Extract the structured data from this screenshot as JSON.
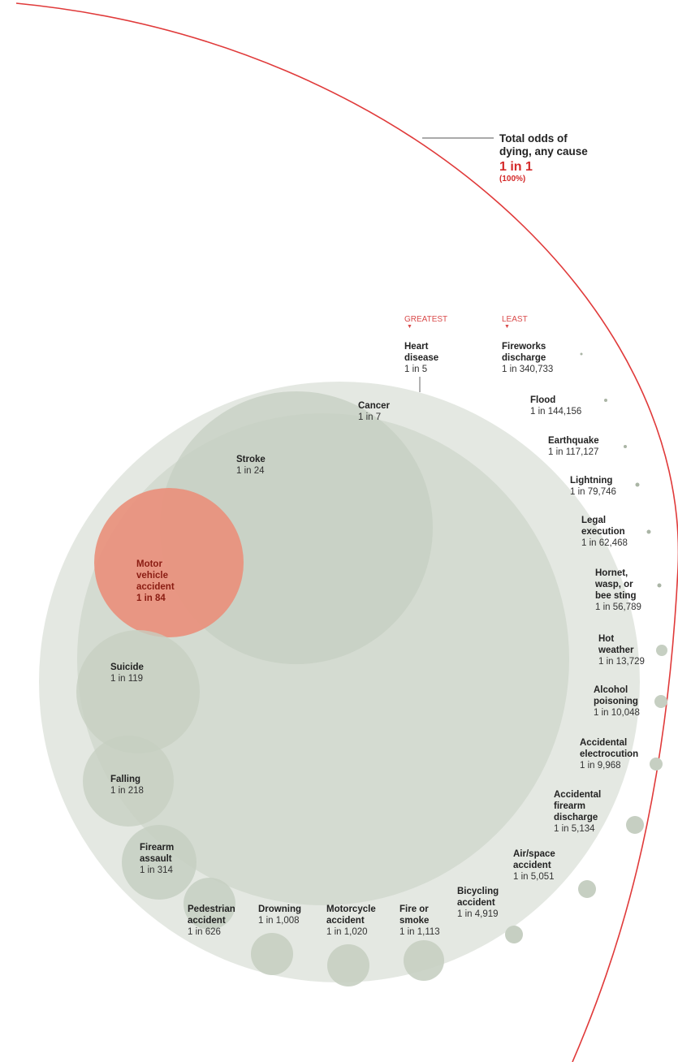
{
  "total": {
    "title": "Total odds of\ndying, any cause",
    "odds": "1 in 1",
    "percent": "(100%)"
  },
  "key": {
    "greatest": "GREATEST",
    "least": "LEAST"
  },
  "colors": {
    "outer_arc": "#e03a3a",
    "big_circle": "#dfe4dd",
    "cause_circle": "#c6cfc2",
    "highlight": "#e9907c",
    "highlight_text": "#8a1c12"
  },
  "chart_data": {
    "type": "bubble",
    "value_format": "1 in N (lifetime odds of dying)",
    "causes": [
      {
        "name": "Heart\ndisease",
        "odds": "1 in 5",
        "n": 5
      },
      {
        "name": "Cancer",
        "odds": "1 in 7",
        "n": 7
      },
      {
        "name": "Stroke",
        "odds": "1 in 24",
        "n": 24
      },
      {
        "name": "Motor\nvehicle\naccident",
        "odds": "1 in 84",
        "n": 84,
        "highlight": true
      },
      {
        "name": "Suicide",
        "odds": "1 in 119",
        "n": 119
      },
      {
        "name": "Falling",
        "odds": "1 in 218",
        "n": 218
      },
      {
        "name": "Firearm\nassault",
        "odds": "1 in 314",
        "n": 314
      },
      {
        "name": "Pedestrian\naccident",
        "odds": "1 in 626",
        "n": 626
      },
      {
        "name": "Drowning",
        "odds": "1 in 1,008",
        "n": 1008
      },
      {
        "name": "Motorcycle\naccident",
        "odds": "1 in 1,020",
        "n": 1020
      },
      {
        "name": "Fire or\nsmoke",
        "odds": "1 in 1,113",
        "n": 1113
      },
      {
        "name": "Bicycling\naccident",
        "odds": "1 in 4,919",
        "n": 4919
      },
      {
        "name": "Air/space\naccident",
        "odds": "1 in 5,051",
        "n": 5051
      },
      {
        "name": "Accidental\nfirearm\ndischarge",
        "odds": "1 in 5,134",
        "n": 5134
      },
      {
        "name": "Accidental\nelectrocution",
        "odds": "1 in 9,968",
        "n": 9968
      },
      {
        "name": "Alcohol\npoisoning",
        "odds": "1 in 10,048",
        "n": 10048
      },
      {
        "name": "Hot\nweather",
        "odds": "1 in 13,729",
        "n": 13729
      },
      {
        "name": "Hornet,\nwasp, or\nbee sting",
        "odds": "1 in 56,789",
        "n": 56789
      },
      {
        "name": "Legal\nexecution",
        "odds": "1 in 62,468",
        "n": 62468
      },
      {
        "name": "Lightning",
        "odds": "1 in 79,746",
        "n": 79746
      },
      {
        "name": "Earthquake",
        "odds": "1 in 117,127",
        "n": 117127
      },
      {
        "name": "Flood",
        "odds": "1 in 144,156",
        "n": 144156
      },
      {
        "name": "Fireworks\ndischarge",
        "odds": "1 in 340,733",
        "n": 340733
      }
    ]
  }
}
